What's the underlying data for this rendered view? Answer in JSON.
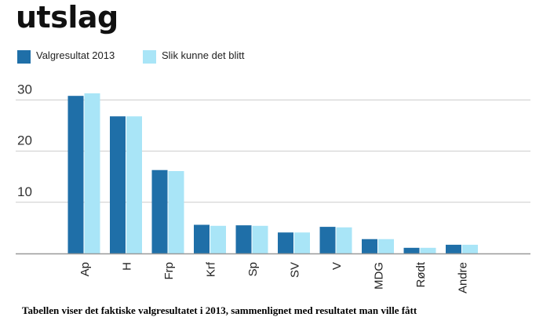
{
  "colors": {
    "series1": "#1f6fa8",
    "series2": "#a9e5f7",
    "grid": "#cccccc",
    "axis": "#999999"
  },
  "header": {
    "title": "utslag"
  },
  "caption": "Tabellen viser det faktiske valgresultatet i 2013, sammenlignet med resultatet man ville fått",
  "chart_data": {
    "type": "bar",
    "title": "",
    "xlabel": "",
    "ylabel": "",
    "ylim": [
      0,
      32
    ],
    "yticks": [
      10,
      20,
      30
    ],
    "grid": true,
    "legend": "top-left",
    "categories": [
      "Ap",
      "H",
      "Frp",
      "Krf",
      "Sp",
      "SV",
      "V",
      "MDG",
      "Rødt",
      "Andre"
    ],
    "series": [
      {
        "name": "Valgresultat 2013",
        "values": [
          30.8,
          26.8,
          16.3,
          5.6,
          5.5,
          4.1,
          5.2,
          2.8,
          1.1,
          1.7
        ]
      },
      {
        "name": "Slik kunne det blitt",
        "values": [
          31.3,
          26.8,
          16.1,
          5.4,
          5.4,
          4.1,
          5.1,
          2.8,
          1.1,
          1.7
        ]
      }
    ]
  }
}
